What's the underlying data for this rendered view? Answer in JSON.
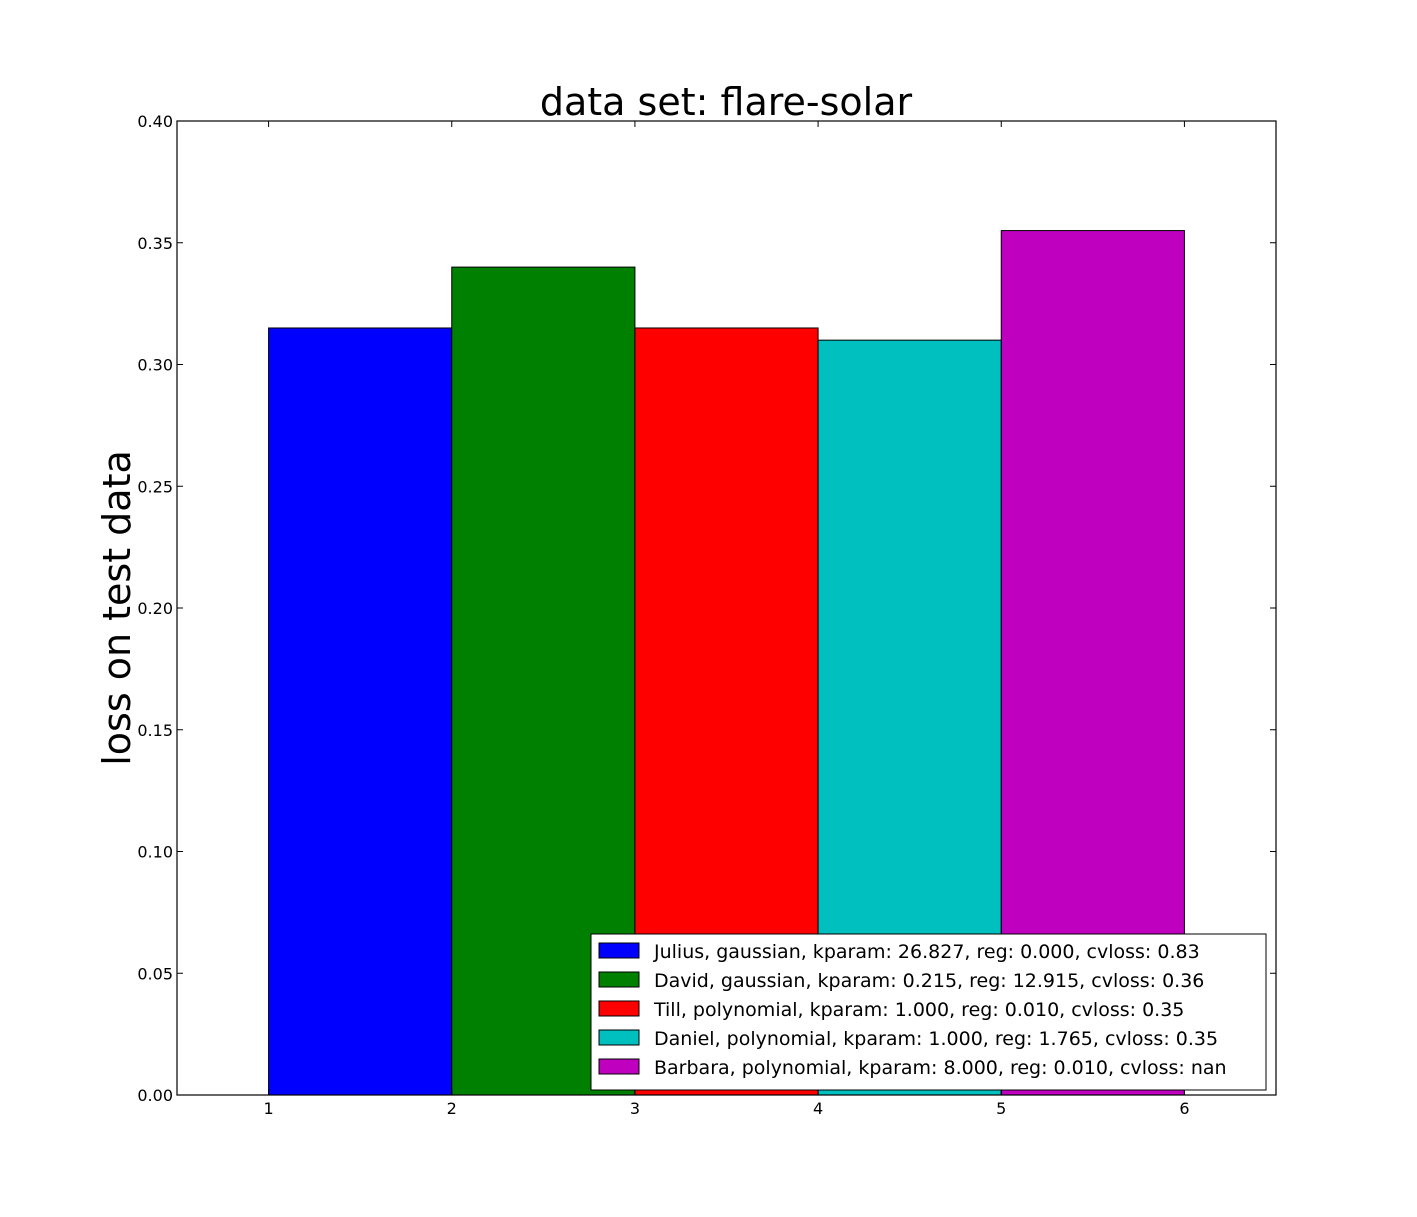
{
  "chart_data": {
    "type": "bar",
    "title": "data set: flare-solar",
    "xlabel": "",
    "ylabel": "loss on test data",
    "xlim": [
      0.5,
      6.5
    ],
    "ylim": [
      0.0,
      0.4
    ],
    "x_ticks": [
      "1",
      "2",
      "3",
      "4",
      "5",
      "6"
    ],
    "y_ticks": [
      "0.00",
      "0.05",
      "0.10",
      "0.15",
      "0.20",
      "0.25",
      "0.30",
      "0.35",
      "0.40"
    ],
    "grid": false,
    "legend_position": "lower-right",
    "series": [
      {
        "name": "Julius, gaussian, kparam: 26.827, reg: 0.000, cvloss: 0.83",
        "x_start": 1,
        "x_end": 2,
        "value": 0.315,
        "color": "#0000ff"
      },
      {
        "name": "David, gaussian, kparam: 0.215, reg: 12.915, cvloss: 0.36",
        "x_start": 2,
        "x_end": 3,
        "value": 0.34,
        "color": "#008000"
      },
      {
        "name": "Till, polynomial, kparam: 1.000, reg: 0.010, cvloss: 0.35",
        "x_start": 3,
        "x_end": 4,
        "value": 0.315,
        "color": "#ff0000"
      },
      {
        "name": "Daniel, polynomial, kparam: 1.000, reg: 1.765, cvloss: 0.35",
        "x_start": 4,
        "x_end": 5,
        "value": 0.31,
        "color": "#00bfbf"
      },
      {
        "name": "Barbara, polynomial, kparam: 8.000, reg: 0.010, cvloss: nan",
        "x_start": 5,
        "x_end": 6,
        "value": 0.355,
        "color": "#bf00bf"
      }
    ]
  }
}
